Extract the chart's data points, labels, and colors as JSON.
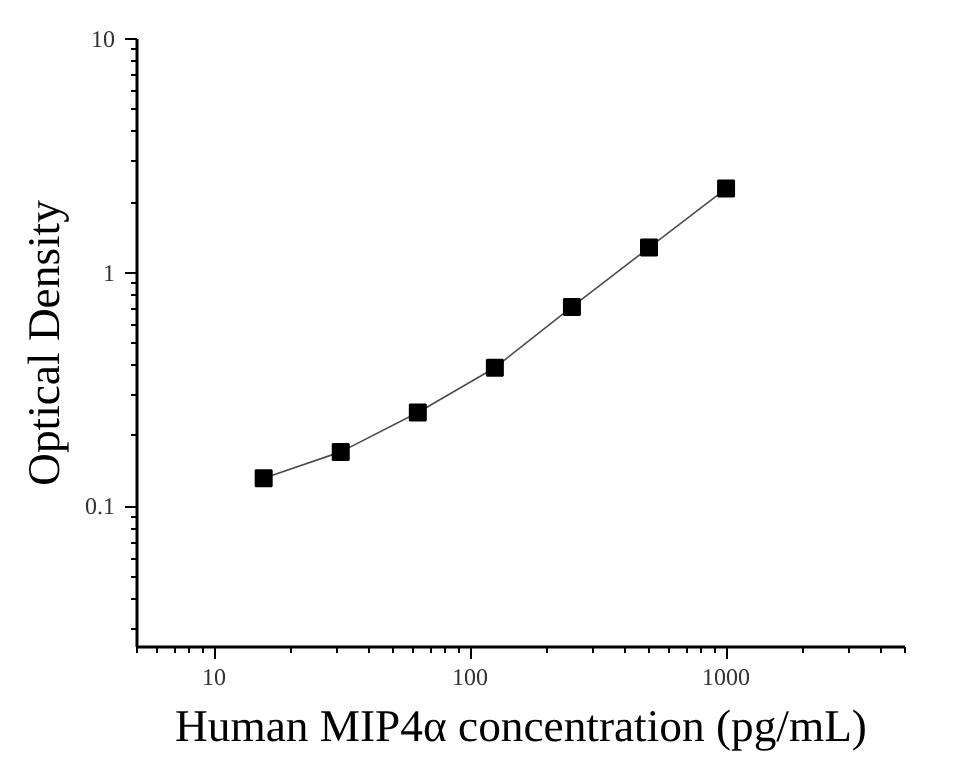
{
  "chart_data": {
    "type": "line",
    "xlabel": "Human MIP4α concentration (pg/mL)",
    "ylabel": "Optical Density",
    "log": "xy",
    "x": [
      15.625,
      31.25,
      62.5,
      125,
      250,
      500,
      1000
    ],
    "series": [
      {
        "color": "#000000",
        "values": [
          0.132,
          0.171,
          0.252,
          0.392,
          0.713,
          1.28,
          2.29
        ]
      }
    ],
    "marker": "square",
    "line_style": "solid",
    "grid": false,
    "xlim": [
      5,
      5000
    ],
    "ylim": [
      0.025,
      10
    ],
    "xticks": [
      10,
      100,
      1000
    ],
    "yticks": [
      0.1,
      1,
      10
    ]
  }
}
